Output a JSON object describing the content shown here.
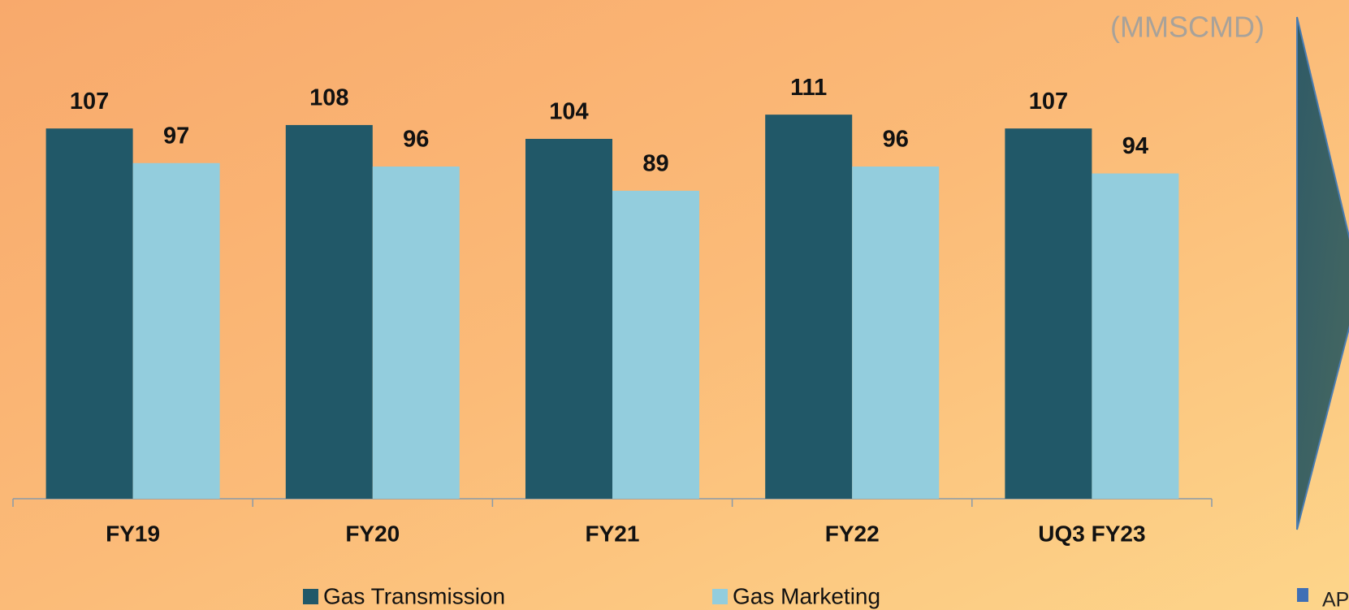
{
  "chart_data": {
    "type": "bar",
    "unit_label": "(MMSCMD)",
    "categories": [
      "FY19",
      "FY20",
      "FY21",
      "FY22",
      "UQ3 FY23"
    ],
    "series": [
      {
        "name": "Gas Transmission",
        "color": "#215868",
        "values": [
          107,
          108,
          104,
          111,
          107
        ]
      },
      {
        "name": "Gas Marketing",
        "color": "#93cddd",
        "values": [
          97,
          96,
          89,
          96,
          94
        ]
      }
    ],
    "legend": "bottom",
    "side_legend_text": "AP"
  }
}
